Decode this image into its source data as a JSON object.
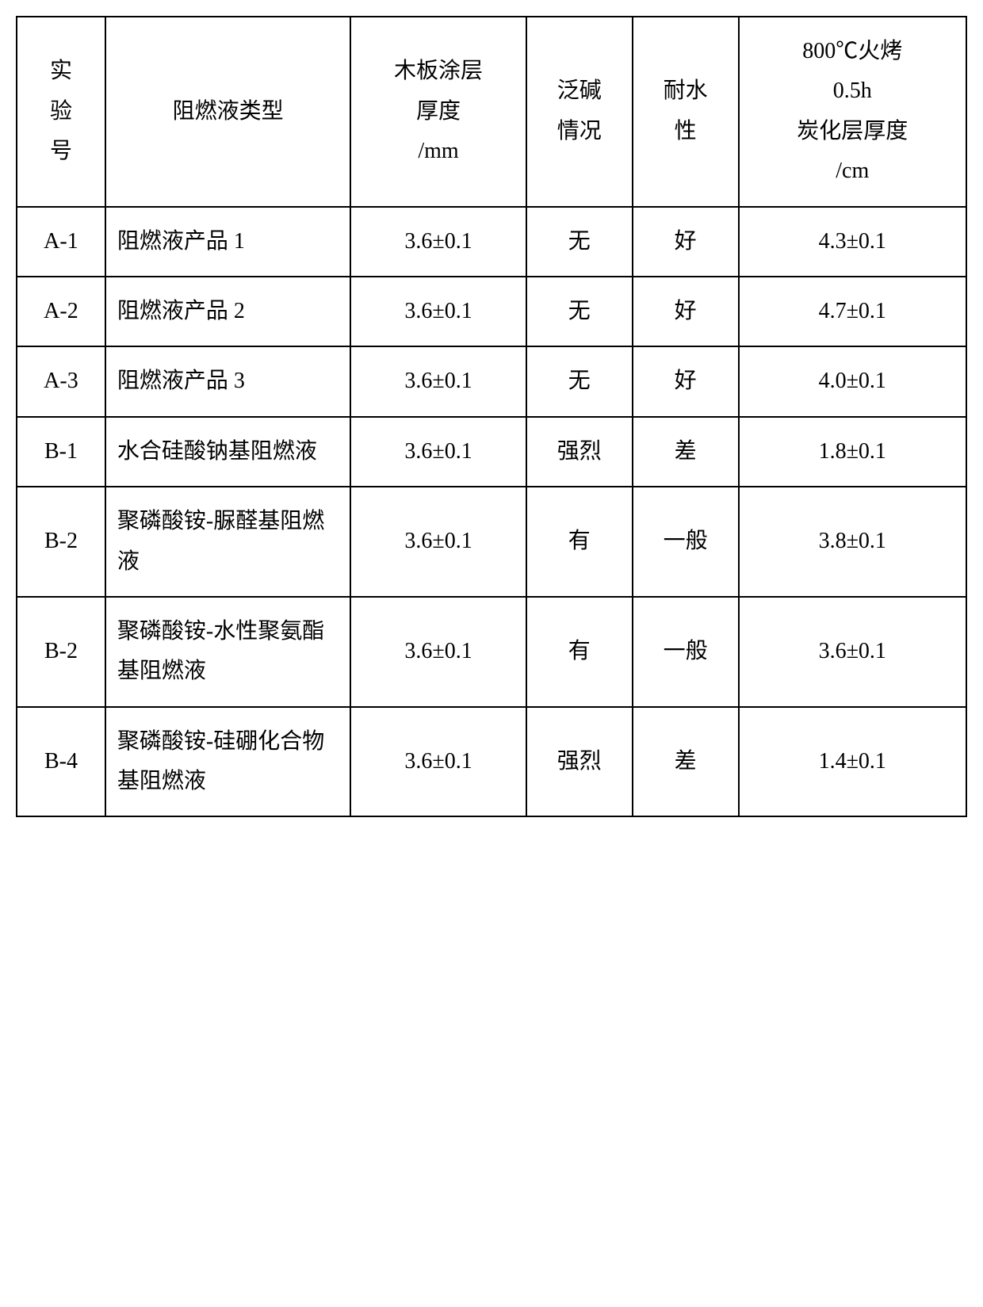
{
  "table": {
    "headers": {
      "exp_no": "实验号",
      "type": "阻燃液类型",
      "thickness": "木板涂层厚度/mm",
      "alkali": "泛碱情况",
      "water": "耐水性",
      "char": "800℃火烤0.5h炭化层厚度/cm"
    },
    "rows": [
      {
        "exp": "A-1",
        "type": "阻燃液产品 1",
        "thick": "3.6±0.1",
        "alk": "无",
        "water": "好",
        "char": "4.3±0.1"
      },
      {
        "exp": "A-2",
        "type": "阻燃液产品 2",
        "thick": "3.6±0.1",
        "alk": "无",
        "water": "好",
        "char": "4.7±0.1"
      },
      {
        "exp": "A-3",
        "type": "阻燃液产品 3",
        "thick": "3.6±0.1",
        "alk": "无",
        "water": "好",
        "char": "4.0±0.1"
      },
      {
        "exp": "B-1",
        "type": "水合硅酸钠基阻燃液",
        "thick": "3.6±0.1",
        "alk": "强烈",
        "water": "差",
        "char": "1.8±0.1"
      },
      {
        "exp": "B-2",
        "type": "聚磷酸铵-脲醛基阻燃液",
        "thick": "3.6±0.1",
        "alk": "有",
        "water": "一般",
        "char": "3.8±0.1"
      },
      {
        "exp": "B-2",
        "type": "聚磷酸铵-水性聚氨酯基阻燃液",
        "thick": "3.6±0.1",
        "alk": "有",
        "water": "一般",
        "char": "3.6±0.1"
      },
      {
        "exp": "B-4",
        "type": "聚磷酸铵-硅硼化合物基阻燃液",
        "thick": "3.6±0.1",
        "alk": "强烈",
        "water": "差",
        "char": "1.4±0.1"
      }
    ],
    "styles": {
      "border_color": "#000000",
      "background_color": "#ffffff",
      "font_size": 28,
      "text_color": "#000000"
    }
  }
}
